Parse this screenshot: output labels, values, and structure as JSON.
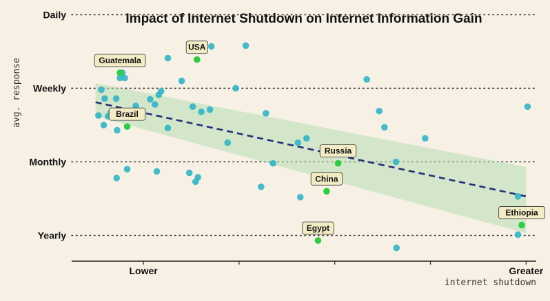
{
  "chart_data": {
    "type": "scatter",
    "title": "Impact of Internet Shutdown on Internet Information Gain",
    "xlabel": "internet shutdown",
    "ylabel": "avg. response",
    "xlim": [
      0,
      1
    ],
    "ylim": [
      0.65,
      4.2
    ],
    "x_ticks": [
      {
        "value": 0.15,
        "label": "Lower"
      },
      {
        "value": 0.35,
        "label": ""
      },
      {
        "value": 0.55,
        "label": ""
      },
      {
        "value": 0.75,
        "label": ""
      },
      {
        "value": 0.95,
        "label": "Greater"
      }
    ],
    "y_ticks": [
      {
        "value": 1,
        "label": "Yearly"
      },
      {
        "value": 2,
        "label": "Monthly"
      },
      {
        "value": 3,
        "label": "Weekly"
      },
      {
        "value": 4,
        "label": "Daily"
      }
    ],
    "grid": "horizontal-dotted",
    "trend": {
      "x": [
        0.05,
        0.95
      ],
      "y": [
        2.81,
        1.53
      ],
      "band_lower": [
        2.62,
        1.03
      ],
      "band_upper": [
        3.07,
        1.93
      ]
    },
    "points": [
      {
        "x": 0.056,
        "y": 2.63
      },
      {
        "x": 0.062,
        "y": 2.98
      },
      {
        "x": 0.069,
        "y": 2.86
      },
      {
        "x": 0.076,
        "y": 2.62
      },
      {
        "x": 0.082,
        "y": 2.67
      },
      {
        "x": 0.067,
        "y": 2.5
      },
      {
        "x": 0.089,
        "y": 3.39
      },
      {
        "x": 0.093,
        "y": 2.86
      },
      {
        "x": 0.095,
        "y": 2.43
      },
      {
        "x": 0.094,
        "y": 1.78
      },
      {
        "x": 0.101,
        "y": 3.14
      },
      {
        "x": 0.106,
        "y": 3.21
      },
      {
        "x": 0.111,
        "y": 3.14
      },
      {
        "x": 0.116,
        "y": 1.9
      },
      {
        "x": 0.134,
        "y": 2.76
      },
      {
        "x": 0.164,
        "y": 2.85
      },
      {
        "x": 0.174,
        "y": 2.78
      },
      {
        "x": 0.178,
        "y": 1.87
      },
      {
        "x": 0.182,
        "y": 2.91
      },
      {
        "x": 0.187,
        "y": 2.96
      },
      {
        "x": 0.201,
        "y": 3.41
      },
      {
        "x": 0.201,
        "y": 2.46
      },
      {
        "x": 0.23,
        "y": 3.1
      },
      {
        "x": 0.246,
        "y": 1.85
      },
      {
        "x": 0.253,
        "y": 2.75
      },
      {
        "x": 0.259,
        "y": 1.73
      },
      {
        "x": 0.264,
        "y": 1.79
      },
      {
        "x": 0.271,
        "y": 2.68
      },
      {
        "x": 0.289,
        "y": 2.71
      },
      {
        "x": 0.292,
        "y": 3.57
      },
      {
        "x": 0.326,
        "y": 2.26
      },
      {
        "x": 0.343,
        "y": 3.0
      },
      {
        "x": 0.364,
        "y": 3.58
      },
      {
        "x": 0.396,
        "y": 1.66
      },
      {
        "x": 0.406,
        "y": 2.66
      },
      {
        "x": 0.421,
        "y": 1.98
      },
      {
        "x": 0.478,
        "y": 1.52
      },
      {
        "x": 0.473,
        "y": 2.26
      },
      {
        "x": 0.491,
        "y": 2.32
      },
      {
        "x": 0.519,
        "y": 1.07
      },
      {
        "x": 0.617,
        "y": 3.12
      },
      {
        "x": 0.643,
        "y": 2.69
      },
      {
        "x": 0.654,
        "y": 2.47
      },
      {
        "x": 0.678,
        "y": 2.0
      },
      {
        "x": 0.679,
        "y": 0.83
      },
      {
        "x": 0.739,
        "y": 2.32
      },
      {
        "x": 0.933,
        "y": 1.53
      },
      {
        "x": 0.933,
        "y": 1.01
      },
      {
        "x": 0.953,
        "y": 2.75
      }
    ],
    "highlighted": [
      {
        "name": "USA",
        "x": 0.262,
        "y": 3.39
      },
      {
        "name": "Guatemala",
        "x": 0.101,
        "y": 3.21
      },
      {
        "name": "Brazil",
        "x": 0.116,
        "y": 2.48
      },
      {
        "name": "Russia",
        "x": 0.557,
        "y": 1.98
      },
      {
        "name": "China",
        "x": 0.533,
        "y": 1.6
      },
      {
        "name": "Egypt",
        "x": 0.515,
        "y": 0.93
      },
      {
        "name": "Ethiopia",
        "x": 0.941,
        "y": 1.14
      }
    ],
    "colors": {
      "background": "#f7f0e4",
      "points": "#2fb5c6",
      "highlight": "#2ecc40",
      "trend": "#22307a",
      "band": "#b7dfb5",
      "label_fill": "#f3ebc4"
    }
  }
}
